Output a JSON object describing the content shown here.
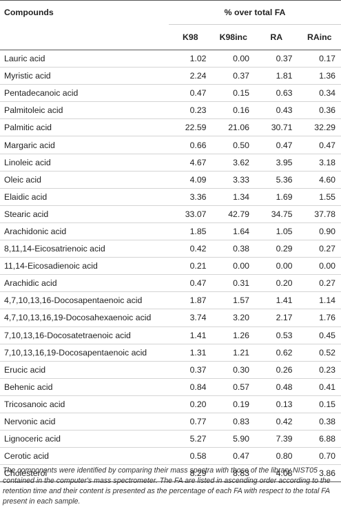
{
  "table": {
    "header": {
      "compounds": "Compounds",
      "group": "% over total FA",
      "columns": [
        "K98",
        "K98inc",
        "RA",
        "RAinc"
      ]
    },
    "rows": [
      {
        "name": "Lauric acid",
        "values": [
          "1.02",
          "0.00",
          "0.37",
          "0.17"
        ]
      },
      {
        "name": "Myristic acid",
        "values": [
          "2.24",
          "0.37",
          "1.81",
          "1.36"
        ]
      },
      {
        "name": "Pentadecanoic acid",
        "values": [
          "0.47",
          "0.15",
          "0.63",
          "0.34"
        ]
      },
      {
        "name": "Palmitoleic acid",
        "values": [
          "0.23",
          "0.16",
          "0.43",
          "0.36"
        ]
      },
      {
        "name": "Palmitic acid",
        "values": [
          "22.59",
          "21.06",
          "30.71",
          "32.29"
        ]
      },
      {
        "name": "Margaric acid",
        "values": [
          "0.66",
          "0.50",
          "0.47",
          "0.47"
        ]
      },
      {
        "name": "Linoleic acid",
        "values": [
          "4.67",
          "3.62",
          "3.95",
          "3.18"
        ]
      },
      {
        "name": "Oleic acid",
        "values": [
          "4.09",
          "3.33",
          "5.36",
          "4.60"
        ]
      },
      {
        "name": "Elaidic acid",
        "values": [
          "3.36",
          "1.34",
          "1.69",
          "1.55"
        ]
      },
      {
        "name": "Stearic acid",
        "values": [
          "33.07",
          "42.79",
          "34.75",
          "37.78"
        ]
      },
      {
        "name": "Arachidonic acid",
        "values": [
          "1.85",
          "1.64",
          "1.05",
          "0.90"
        ]
      },
      {
        "name": "8,11,14-Eicosatrienoic acid",
        "values": [
          "0.42",
          "0.38",
          "0.29",
          "0.27"
        ]
      },
      {
        "name": "11,14-Eicosadienoic acid",
        "values": [
          "0.21",
          "0.00",
          "0.00",
          "0.00"
        ]
      },
      {
        "name": "Arachidic acid",
        "values": [
          "0.47",
          "0.31",
          "0.20",
          "0.27"
        ]
      },
      {
        "name": "4,7,10,13,16-Docosapentaenoic acid",
        "values": [
          "1.87",
          "1.57",
          "1.41",
          "1.14"
        ]
      },
      {
        "name": "4,7,10,13,16,19-Docosahexaenoic acid",
        "values": [
          "3.74",
          "3.20",
          "2.17",
          "1.76"
        ]
      },
      {
        "name": "7,10,13,16-Docosatetraenoic acid",
        "values": [
          "1.41",
          "1.26",
          "0.53",
          "0.45"
        ]
      },
      {
        "name": "7,10,13,16,19-Docosapentaenoic acid",
        "values": [
          "1.31",
          "1.21",
          "0.62",
          "0.52"
        ]
      },
      {
        "name": "Erucic acid",
        "values": [
          "0.37",
          "0.30",
          "0.26",
          "0.23"
        ]
      },
      {
        "name": "Behenic acid",
        "values": [
          "0.84",
          "0.57",
          "0.48",
          "0.41"
        ]
      },
      {
        "name": "Tricosanoic acid",
        "values": [
          "0.20",
          "0.19",
          "0.13",
          "0.15"
        ]
      },
      {
        "name": "Nervonic acid",
        "values": [
          "0.77",
          "0.83",
          "0.42",
          "0.38"
        ]
      },
      {
        "name": "Lignoceric acid",
        "values": [
          "5.27",
          "5.90",
          "7.39",
          "6.88"
        ]
      },
      {
        "name": "Cerotic acid",
        "values": [
          "0.58",
          "0.47",
          "0.80",
          "0.70"
        ]
      },
      {
        "name": "Cholesterol",
        "values": [
          "8.29",
          "8.83",
          "4.08",
          "3.86"
        ]
      }
    ]
  },
  "footnote": "The components were identified by comparing their mass spectra with those of the library NIST05 contained in the computer's mass spectrometer. The FA are listed in ascending order according to the retention time and their content is presented as the percentage of each FA with respect to the total FA present in each sample."
}
